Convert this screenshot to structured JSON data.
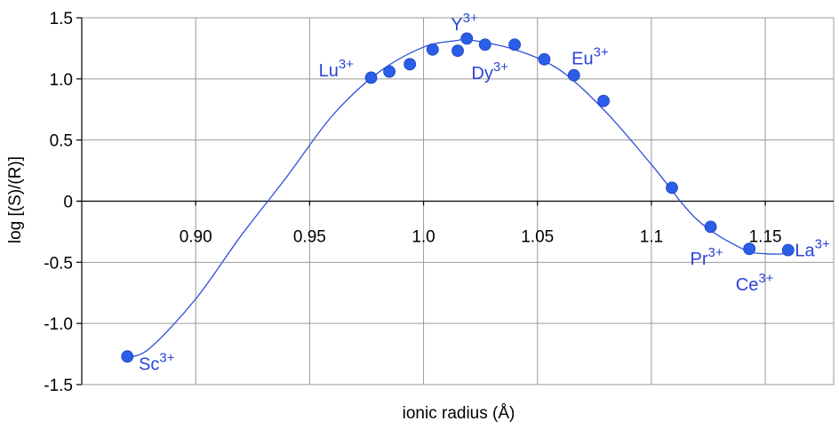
{
  "chart_data": {
    "type": "scatter",
    "title": "",
    "xlabel": "ionic radius (Å)",
    "ylabel": "log [(S)/(R)]",
    "xlim": [
      0.85,
      1.18
    ],
    "ylim": [
      -1.5,
      1.5
    ],
    "grid": true,
    "legend": "none",
    "x_ticks": [
      0.9,
      0.95,
      1.0,
      1.05,
      1.1,
      1.15
    ],
    "x_tick_labels": [
      "0.90",
      "0.95",
      "1.0",
      "1.05",
      "1.1",
      "1.15"
    ],
    "y_ticks": [
      1.5,
      1.0,
      0.5,
      0,
      -0.5,
      -1.0,
      -1.5
    ],
    "y_tick_labels": [
      "1.5",
      "1.0",
      "0.5",
      "0",
      "-0.5",
      "-1.0",
      "-1.5"
    ],
    "marker_color": "#2a5ee8",
    "curve_color": "#2c4fd8",
    "label_color": "#2a44d6",
    "series": [
      {
        "points": [
          {
            "x": 0.87,
            "y": -1.27
          },
          {
            "x": 0.977,
            "y": 1.01
          },
          {
            "x": 0.985,
            "y": 1.06
          },
          {
            "x": 0.994,
            "y": 1.12
          },
          {
            "x": 1.004,
            "y": 1.24
          },
          {
            "x": 1.015,
            "y": 1.23
          },
          {
            "x": 1.019,
            "y": 1.33
          },
          {
            "x": 1.027,
            "y": 1.28
          },
          {
            "x": 1.04,
            "y": 1.28
          },
          {
            "x": 1.053,
            "y": 1.16
          },
          {
            "x": 1.066,
            "y": 1.03
          },
          {
            "x": 1.079,
            "y": 0.82
          },
          {
            "x": 1.109,
            "y": 0.11
          },
          {
            "x": 1.126,
            "y": -0.21
          },
          {
            "x": 1.143,
            "y": -0.39
          },
          {
            "x": 1.16,
            "y": -0.4
          }
        ]
      }
    ],
    "fit_curve": {
      "x": [
        0.87,
        0.88,
        0.9,
        0.92,
        0.94,
        0.96,
        0.98,
        1.0,
        1.015,
        1.02,
        1.04,
        1.06,
        1.08,
        1.1,
        1.12,
        1.14,
        1.15,
        1.16
      ],
      "y": [
        -1.28,
        -1.2,
        -0.8,
        -0.28,
        0.2,
        0.7,
        1.05,
        1.26,
        1.315,
        1.32,
        1.24,
        1.07,
        0.73,
        0.3,
        -0.15,
        -0.39,
        -0.43,
        -0.43
      ]
    },
    "annotations": [
      {
        "base": "Sc",
        "sup": "3+",
        "x": 0.875,
        "y": -1.38
      },
      {
        "base": "Lu",
        "sup": "3+",
        "x": 0.954,
        "y": 1.02
      },
      {
        "base": "Y",
        "sup": "3+",
        "x": 1.012,
        "y": 1.4
      },
      {
        "base": "Dy",
        "sup": "3+",
        "x": 1.021,
        "y": 1.0
      },
      {
        "base": "Eu",
        "sup": "3+",
        "x": 1.065,
        "y": 1.12
      },
      {
        "base": "Pr",
        "sup": "3+",
        "x": 1.117,
        "y": -0.52
      },
      {
        "base": "Ce",
        "sup": "3+",
        "x": 1.137,
        "y": -0.73
      },
      {
        "base": "La",
        "sup": "3+",
        "x": 1.163,
        "y": -0.45
      }
    ]
  }
}
